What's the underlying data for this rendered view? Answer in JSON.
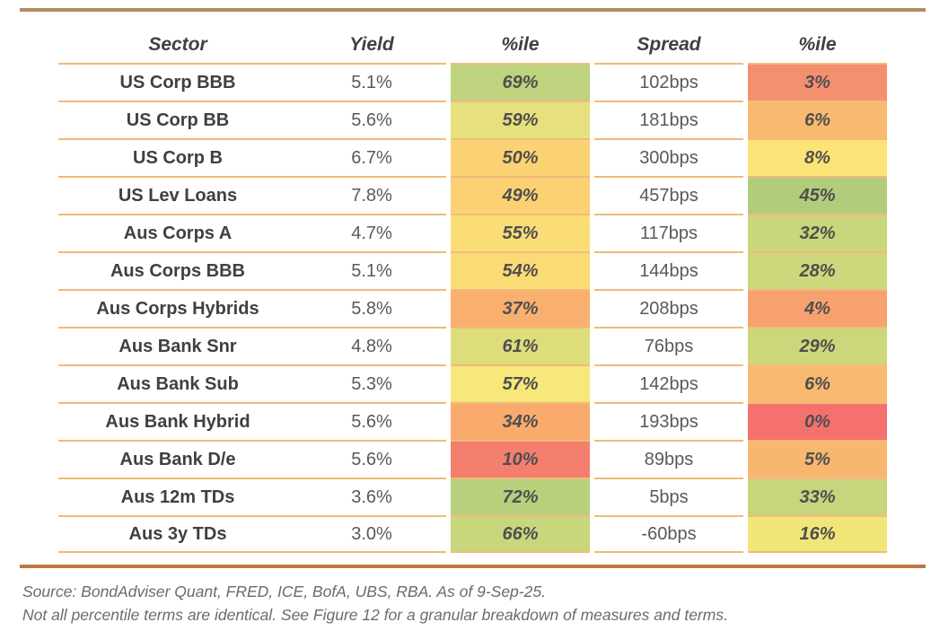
{
  "chart_data": {
    "type": "table",
    "columns": [
      "Sector",
      "Yield",
      "%ile",
      "Spread",
      "%ile"
    ],
    "rows": [
      {
        "sector": "US Corp BBB",
        "yield": "5.1%",
        "yield_pctile": "69%",
        "yield_pctile_color": "#bfd27d",
        "spread": "102bps",
        "spread_pctile": "3%",
        "spread_pctile_color": "#f5906e"
      },
      {
        "sector": "US Corp BB",
        "yield": "5.6%",
        "yield_pctile": "59%",
        "yield_pctile_color": "#e7e07e",
        "spread": "181bps",
        "spread_pctile": "6%",
        "spread_pctile_color": "#f8ba70"
      },
      {
        "sector": "US Corp B",
        "yield": "6.7%",
        "yield_pctile": "50%",
        "yield_pctile_color": "#fbd375",
        "spread": "300bps",
        "spread_pctile": "8%",
        "spread_pctile_color": "#fbe377"
      },
      {
        "sector": "US Lev Loans",
        "yield": "7.8%",
        "yield_pctile": "49%",
        "yield_pctile_color": "#fbd174",
        "spread": "457bps",
        "spread_pctile": "45%",
        "spread_pctile_color": "#b1cd7b"
      },
      {
        "sector": "Aus Corps A",
        "yield": "4.7%",
        "yield_pctile": "55%",
        "yield_pctile_color": "#fbdd77",
        "spread": "117bps",
        "spread_pctile": "32%",
        "spread_pctile_color": "#cad67b"
      },
      {
        "sector": "Aus Corps BBB",
        "yield": "5.1%",
        "yield_pctile": "54%",
        "yield_pctile_color": "#fbdb76",
        "spread": "144bps",
        "spread_pctile": "28%",
        "spread_pctile_color": "#cdd87c"
      },
      {
        "sector": "Aus Corps Hybrids",
        "yield": "5.8%",
        "yield_pctile": "37%",
        "yield_pctile_color": "#f9b06f",
        "spread": "208bps",
        "spread_pctile": "4%",
        "spread_pctile_color": "#f7a26e"
      },
      {
        "sector": "Aus Bank Snr",
        "yield": "4.8%",
        "yield_pctile": "61%",
        "yield_pctile_color": "#dedd7c",
        "spread": "76bps",
        "spread_pctile": "29%",
        "spread_pctile_color": "#ccd77b"
      },
      {
        "sector": "Aus Bank Sub",
        "yield": "5.3%",
        "yield_pctile": "57%",
        "yield_pctile_color": "#f8e77b",
        "spread": "142bps",
        "spread_pctile": "6%",
        "spread_pctile_color": "#f8ba70"
      },
      {
        "sector": "Aus Bank Hybrid",
        "yield": "5.6%",
        "yield_pctile": "34%",
        "yield_pctile_color": "#f9ab6e",
        "spread": "193bps",
        "spread_pctile": "0%",
        "spread_pctile_color": "#f4716d"
      },
      {
        "sector": "Aus Bank D/e",
        "yield": "5.6%",
        "yield_pctile": "10%",
        "yield_pctile_color": "#f57f6e",
        "spread": "89bps",
        "spread_pctile": "5%",
        "spread_pctile_color": "#f8b76f"
      },
      {
        "sector": "Aus 12m TDs",
        "yield": "3.6%",
        "yield_pctile": "72%",
        "yield_pctile_color": "#b8d07c",
        "spread": "5bps",
        "spread_pctile": "33%",
        "spread_pctile_color": "#c7d57c"
      },
      {
        "sector": "Aus 3y TDs",
        "yield": "3.0%",
        "yield_pctile": "66%",
        "yield_pctile_color": "#cad67b",
        "spread": "-60bps",
        "spread_pctile": "16%",
        "spread_pctile_color": "#f1e678"
      }
    ],
    "source": "Source: BondAdviser Quant, FRED, ICE, BofA, UBS, RBA. As of 9-Sep-25.",
    "note": "Not all percentile terms are identical. See Figure 12 for a granular breakdown of measures and terms.",
    "layout": {
      "legend": "none",
      "grid": "horizontal row separators",
      "colorscale": "red-yellow-green percentile heatmap"
    },
    "colors": {
      "top_rule": "#b18d5e",
      "bottom_rule": "#c1763f",
      "row_line": "#f1ba7b",
      "header_text": "#404040",
      "body_text": "#595959"
    }
  }
}
